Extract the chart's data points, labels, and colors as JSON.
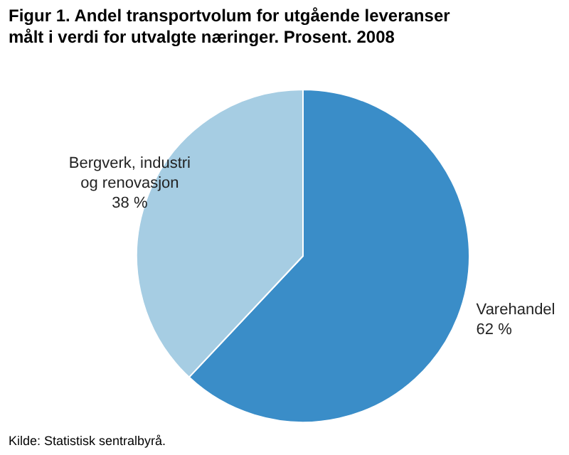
{
  "chart_data": {
    "type": "pie",
    "title": "Figur 1. Andel transportvolum for utgående leveranser målt i verdi for utvalgte næringer. Prosent. 2008",
    "categories": [
      "Varehandel",
      "Bergverk, industri og renovasjon"
    ],
    "values": [
      62,
      38
    ],
    "colors": [
      "#3a8dc8",
      "#a6cde3"
    ],
    "value_labels": [
      "62 %",
      "38 %"
    ],
    "annotations": [
      "Kilde: Statistisk sentralbyrå."
    ],
    "legend": false
  }
}
